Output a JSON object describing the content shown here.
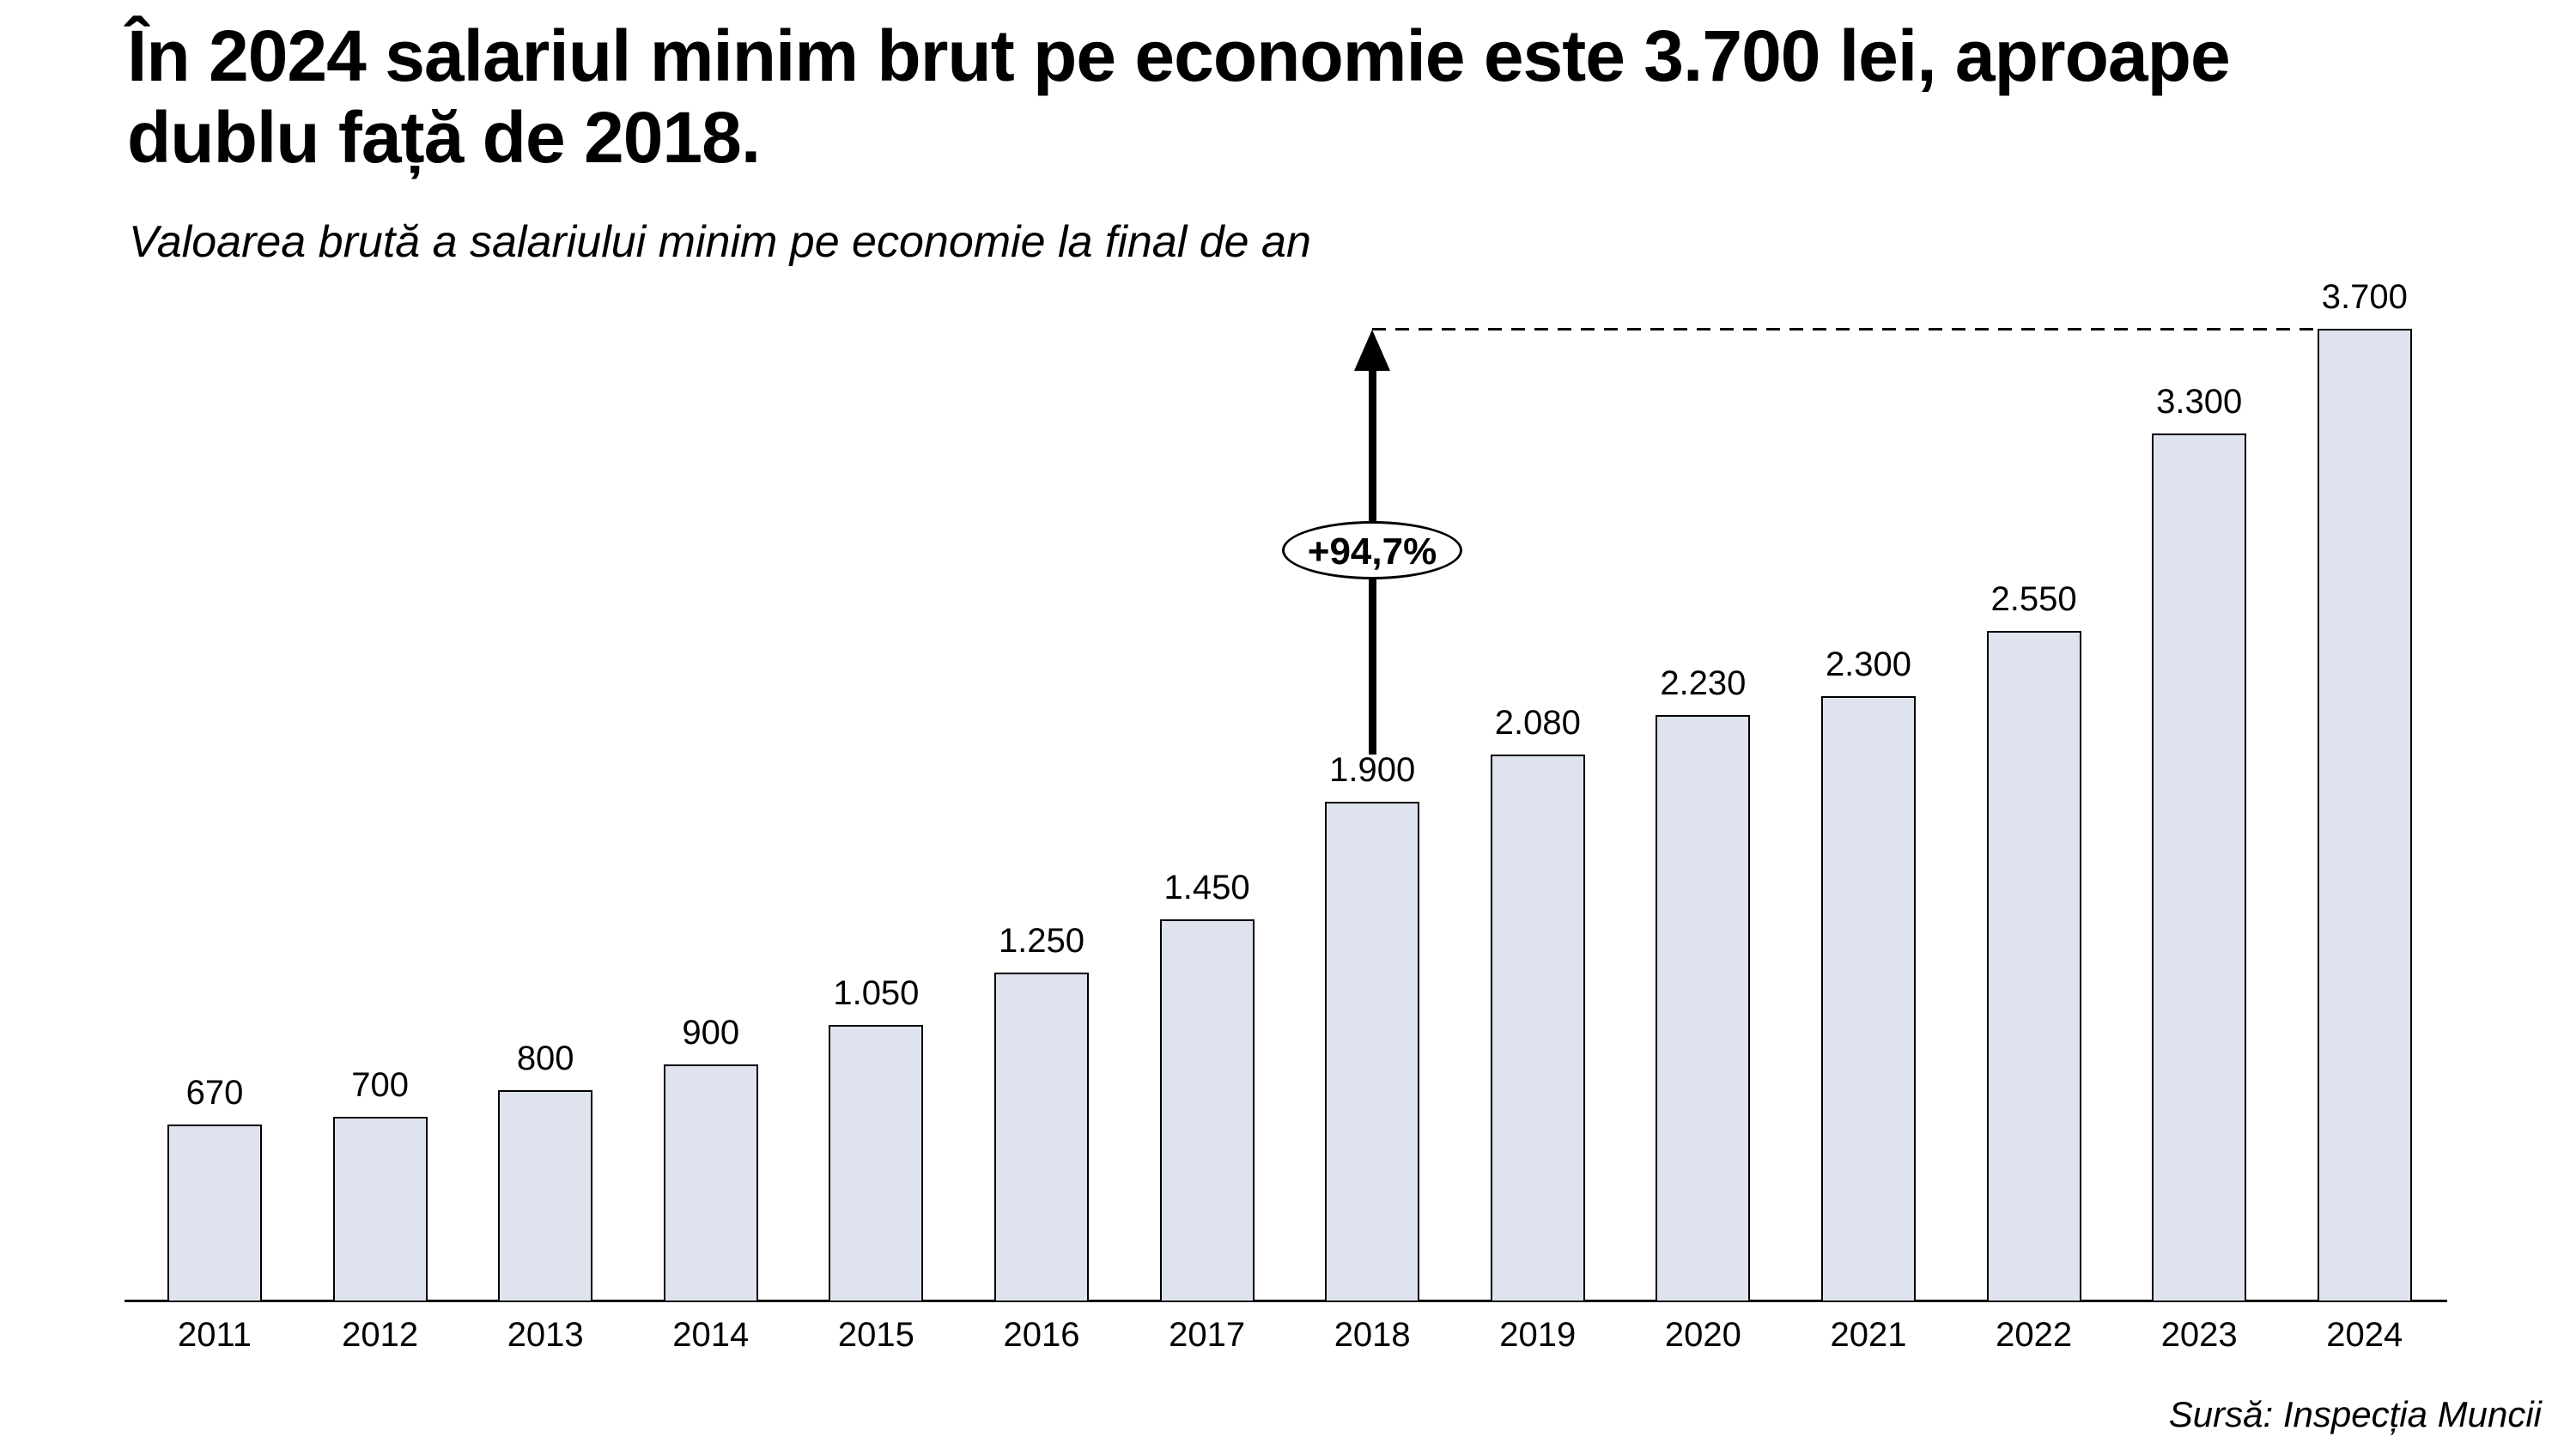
{
  "title": {
    "line1": "În 2024 salariul minim brut pe economie este 3.700 lei, aproape",
    "line2": "dublu față de 2018."
  },
  "subtitle": "Valoarea brută a salariului minim pe economie la final de an",
  "source": "Sursă: Inspecția Muncii",
  "annotation": {
    "label": "+94,7%"
  },
  "chart_data": {
    "type": "bar",
    "title": "În 2024 salariul minim brut pe economie este 3.700 lei, aproape dublu față de 2018.",
    "subtitle": "Valoarea brută a salariului minim pe economie la final de an",
    "categories": [
      "2011",
      "2012",
      "2013",
      "2014",
      "2015",
      "2016",
      "2017",
      "2018",
      "2019",
      "2020",
      "2021",
      "2022",
      "2023",
      "2024"
    ],
    "values": [
      670,
      700,
      800,
      900,
      1050,
      1250,
      1450,
      1900,
      2080,
      2230,
      2300,
      2550,
      3300,
      3700
    ],
    "value_labels": [
      "670",
      "700",
      "800",
      "900",
      "1.050",
      "1.250",
      "1.450",
      "1.900",
      "2.080",
      "2.230",
      "2.300",
      "2.550",
      "3.300",
      "3.700"
    ],
    "unit": "lei",
    "xlabel": "",
    "ylabel": "",
    "ylim": [
      0,
      3700
    ],
    "grid": false,
    "legend": false,
    "bar_color": "#dee3ed",
    "bar_border_color": "#000000",
    "annotation": {
      "text": "+94,7%",
      "from_category": "2018",
      "to_category": "2024",
      "style": "vertical-arrow-from-2018-bar-to-dashed-line-at-3700-level"
    },
    "source": "Sursă: Inspecția Muncii"
  }
}
